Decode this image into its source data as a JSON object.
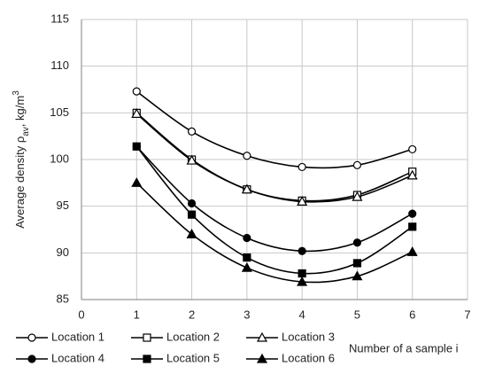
{
  "chart_data": {
    "type": "line",
    "y_label": [
      "Average density ρ",
      "av",
      ", kg/m",
      "3"
    ],
    "x_label": "Number of a sample i",
    "x": [
      1,
      2,
      3,
      4,
      5,
      6
    ],
    "xlim": [
      0,
      7
    ],
    "xticks": [
      0,
      1,
      2,
      3,
      4,
      5,
      6,
      7
    ],
    "ylim": [
      85,
      115
    ],
    "yticks": [
      85,
      90,
      95,
      100,
      105,
      110,
      115
    ],
    "grid": true,
    "smooth": true,
    "legend": "bottom",
    "series": [
      {
        "name": "Location 1",
        "color": "#000000",
        "marker": "circle",
        "filled": false,
        "values": [
          107.3,
          103.0,
          100.4,
          99.2,
          99.4,
          101.1
        ]
      },
      {
        "name": "Location 2",
        "color": "#000000",
        "marker": "square",
        "filled": false,
        "values": [
          105.0,
          100.0,
          96.8,
          95.6,
          96.2,
          98.7
        ]
      },
      {
        "name": "Location 3",
        "color": "#000000",
        "marker": "triangle",
        "filled": false,
        "values": [
          104.9,
          99.9,
          96.8,
          95.5,
          96.0,
          98.3
        ]
      },
      {
        "name": "Location 4",
        "color": "#000000",
        "marker": "circle",
        "filled": true,
        "values": [
          101.4,
          95.3,
          91.6,
          90.2,
          91.1,
          94.2
        ]
      },
      {
        "name": "Location 5",
        "color": "#000000",
        "marker": "square",
        "filled": true,
        "values": [
          101.4,
          94.1,
          89.5,
          87.8,
          88.9,
          92.8
        ]
      },
      {
        "name": "Location 6",
        "color": "#000000",
        "marker": "triangle",
        "filled": true,
        "values": [
          97.5,
          92.0,
          88.4,
          86.9,
          87.5,
          90.1
        ]
      }
    ]
  }
}
